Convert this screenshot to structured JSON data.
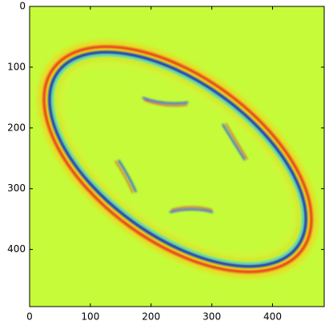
{
  "chart_data": {
    "type": "image",
    "xlim": [
      0,
      485
    ],
    "ylim": [
      494,
      0
    ],
    "xticks": [
      0,
      100,
      200,
      300,
      400
    ],
    "yticks": [
      0,
      100,
      200,
      300,
      400
    ]
  }
}
